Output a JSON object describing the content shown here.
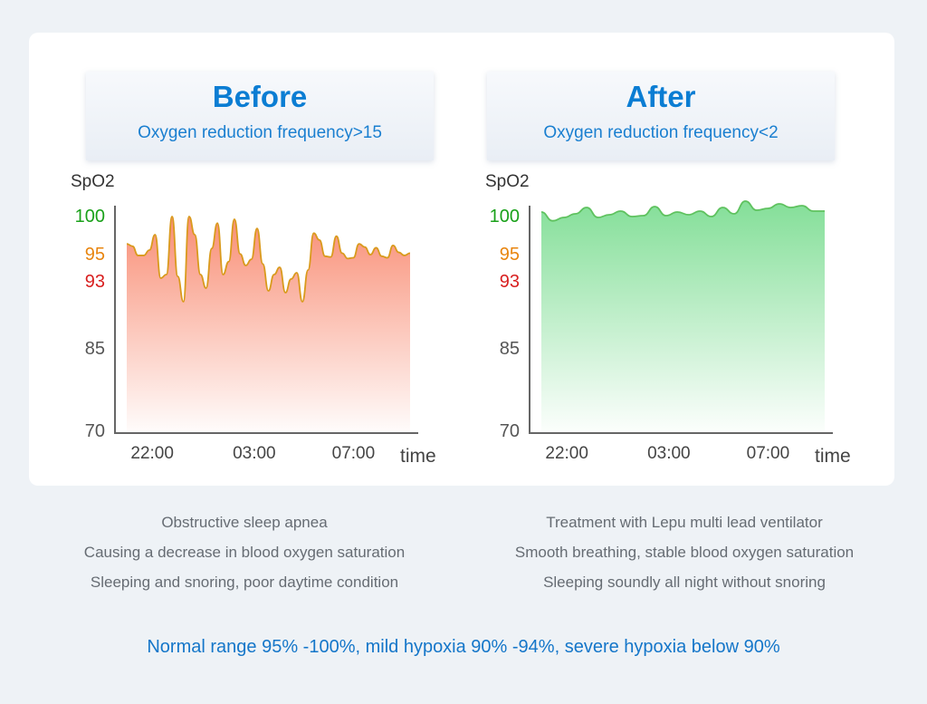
{
  "footer": "Normal range 95% -100%, mild hypoxia 90% -94%, severe hypoxia below 90%",
  "panels": [
    {
      "title": "Before",
      "subtitle": "Oxygen reduction frequency>15",
      "description": [
        "Obstructive sleep apnea",
        "Causing a decrease in blood oxygen saturation",
        "Sleeping and snoring, poor daytime condition"
      ]
    },
    {
      "title": "After",
      "subtitle": "Oxygen reduction frequency<2",
      "description": [
        "Treatment with Lepu multi lead ventilator",
        "Smooth breathing, stable blood oxygen saturation",
        "Sleeping soundly all night without snoring"
      ]
    }
  ],
  "chart_data": [
    {
      "type": "area",
      "title": "Before",
      "ylabel": "SpO2",
      "xlabel": "time",
      "y_ticks": [
        {
          "label": "100",
          "value": 100,
          "color": "#1aa11a"
        },
        {
          "label": "95",
          "value": 95,
          "color": "#e8850f"
        },
        {
          "label": "93",
          "value": 93,
          "color": "#d81f1f"
        },
        {
          "label": "85",
          "value": 85,
          "color": "#555555"
        },
        {
          "label": "70",
          "value": 70,
          "color": "#555555"
        }
      ],
      "x_ticks": [
        {
          "label": "22:00",
          "value": 0.09
        },
        {
          "label": "03:00",
          "value": 0.45
        },
        {
          "label": "07:00",
          "value": 0.8
        }
      ],
      "line_color": "#d99a1c",
      "fill_color": "#f77a5d",
      "x": [
        0,
        0.02,
        0.04,
        0.06,
        0.08,
        0.1,
        0.12,
        0.14,
        0.16,
        0.18,
        0.2,
        0.22,
        0.24,
        0.26,
        0.28,
        0.3,
        0.32,
        0.34,
        0.36,
        0.38,
        0.4,
        0.42,
        0.44,
        0.46,
        0.48,
        0.5,
        0.52,
        0.54,
        0.56,
        0.58,
        0.6,
        0.62,
        0.64,
        0.66,
        0.68,
        0.7,
        0.72,
        0.74,
        0.76,
        0.78,
        0.8,
        0.82,
        0.84,
        0.86,
        0.88,
        0.9,
        0.92,
        0.94,
        0.96,
        0.98,
        1
      ],
      "values": [
        95.8,
        95.5,
        94.3,
        94.3,
        95,
        97,
        91.6,
        92,
        99.3,
        91.8,
        89,
        99.3,
        97,
        92,
        90.5,
        95.2,
        98.5,
        92,
        93.5,
        99,
        94.5,
        93,
        93.8,
        97.8,
        93.2,
        90.2,
        92,
        92.8,
        90,
        91.5,
        92.2,
        89,
        92.5,
        97.2,
        96.3,
        94.2,
        94.1,
        96.8,
        94.6,
        93.9,
        94,
        95.8,
        95.4,
        94.4,
        95.3,
        94.2,
        94,
        95.6,
        94.7,
        94.3,
        94.6
      ],
      "ylim": [
        70,
        102
      ]
    },
    {
      "type": "area",
      "title": "After",
      "ylabel": "SpO2",
      "xlabel": "time",
      "y_ticks": [
        {
          "label": "100",
          "value": 100,
          "color": "#1aa11a"
        },
        {
          "label": "95",
          "value": 95,
          "color": "#e8850f"
        },
        {
          "label": "93",
          "value": 93,
          "color": "#d81f1f"
        },
        {
          "label": "85",
          "value": 85,
          "color": "#555555"
        },
        {
          "label": "70",
          "value": 70,
          "color": "#555555"
        }
      ],
      "x_ticks": [
        {
          "label": "22:00",
          "value": 0.09
        },
        {
          "label": "03:00",
          "value": 0.45
        },
        {
          "label": "07:00",
          "value": 0.8
        }
      ],
      "line_color": "#5fc25f",
      "fill_color": "#6ed986",
      "x": [
        0,
        0.04,
        0.08,
        0.12,
        0.16,
        0.2,
        0.24,
        0.28,
        0.32,
        0.36,
        0.4,
        0.44,
        0.48,
        0.52,
        0.56,
        0.6,
        0.64,
        0.68,
        0.72,
        0.76,
        0.8,
        0.84,
        0.88,
        0.92,
        0.96,
        1
      ],
      "values": [
        99.8,
        98.8,
        99.2,
        99.6,
        100.3,
        99.2,
        99.5,
        99.9,
        99.3,
        99.4,
        100.4,
        99.4,
        99.8,
        99.5,
        99.9,
        99.3,
        100.3,
        99.6,
        101,
        100,
        100.2,
        100.7,
        100.3,
        100.5,
        99.9,
        99.9
      ],
      "ylim": [
        70,
        102
      ]
    }
  ]
}
